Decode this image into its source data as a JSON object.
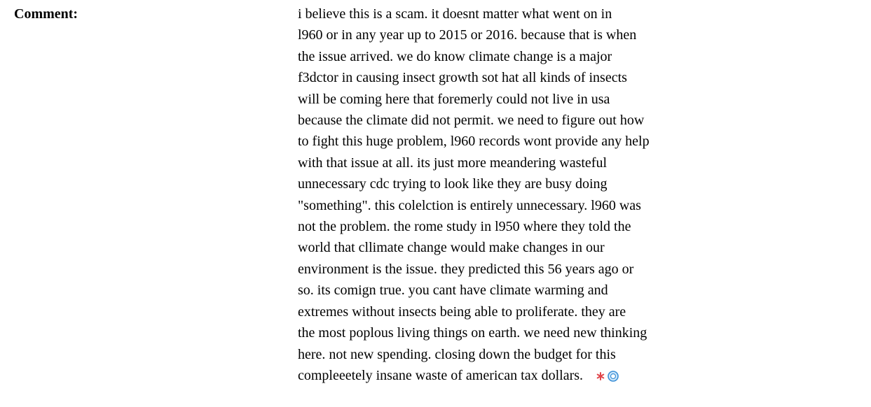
{
  "label": "Comment:",
  "comment_lines": [
    "i believe this is a scam. it doesnt matter what went on in",
    "l960 or in any year up to 2015 or 2016. because that is when",
    "the issue arrived. we do know climate change is a major",
    "f3dctor in causing insect growth sot hat all kinds of insects",
    "will be coming here that foremerly could not live in usa",
    "because the climate did not permit. we need to figure out how",
    "to fight this huge problem, l960 records wont provide any help",
    "with that issue at all. its just more meandering wasteful",
    "unnecessary cdc trying to look like they are busy doing",
    "\"something\". this colelction is entirely unnecessary. l960 was",
    "not the problem. the rome study in l950 where they told the",
    "world that cllimate change would make changes in our",
    "environment is the issue. they predicted this 56 years ago or",
    "so. its comign true. you cant have climate warming and",
    "extremes without insects being able to proliferate. they are",
    "the most poplous living things on earth. we need new thinking",
    "here. not new spending. closing down the budget for this",
    "compleeetely insane waste of american tax dollars."
  ]
}
